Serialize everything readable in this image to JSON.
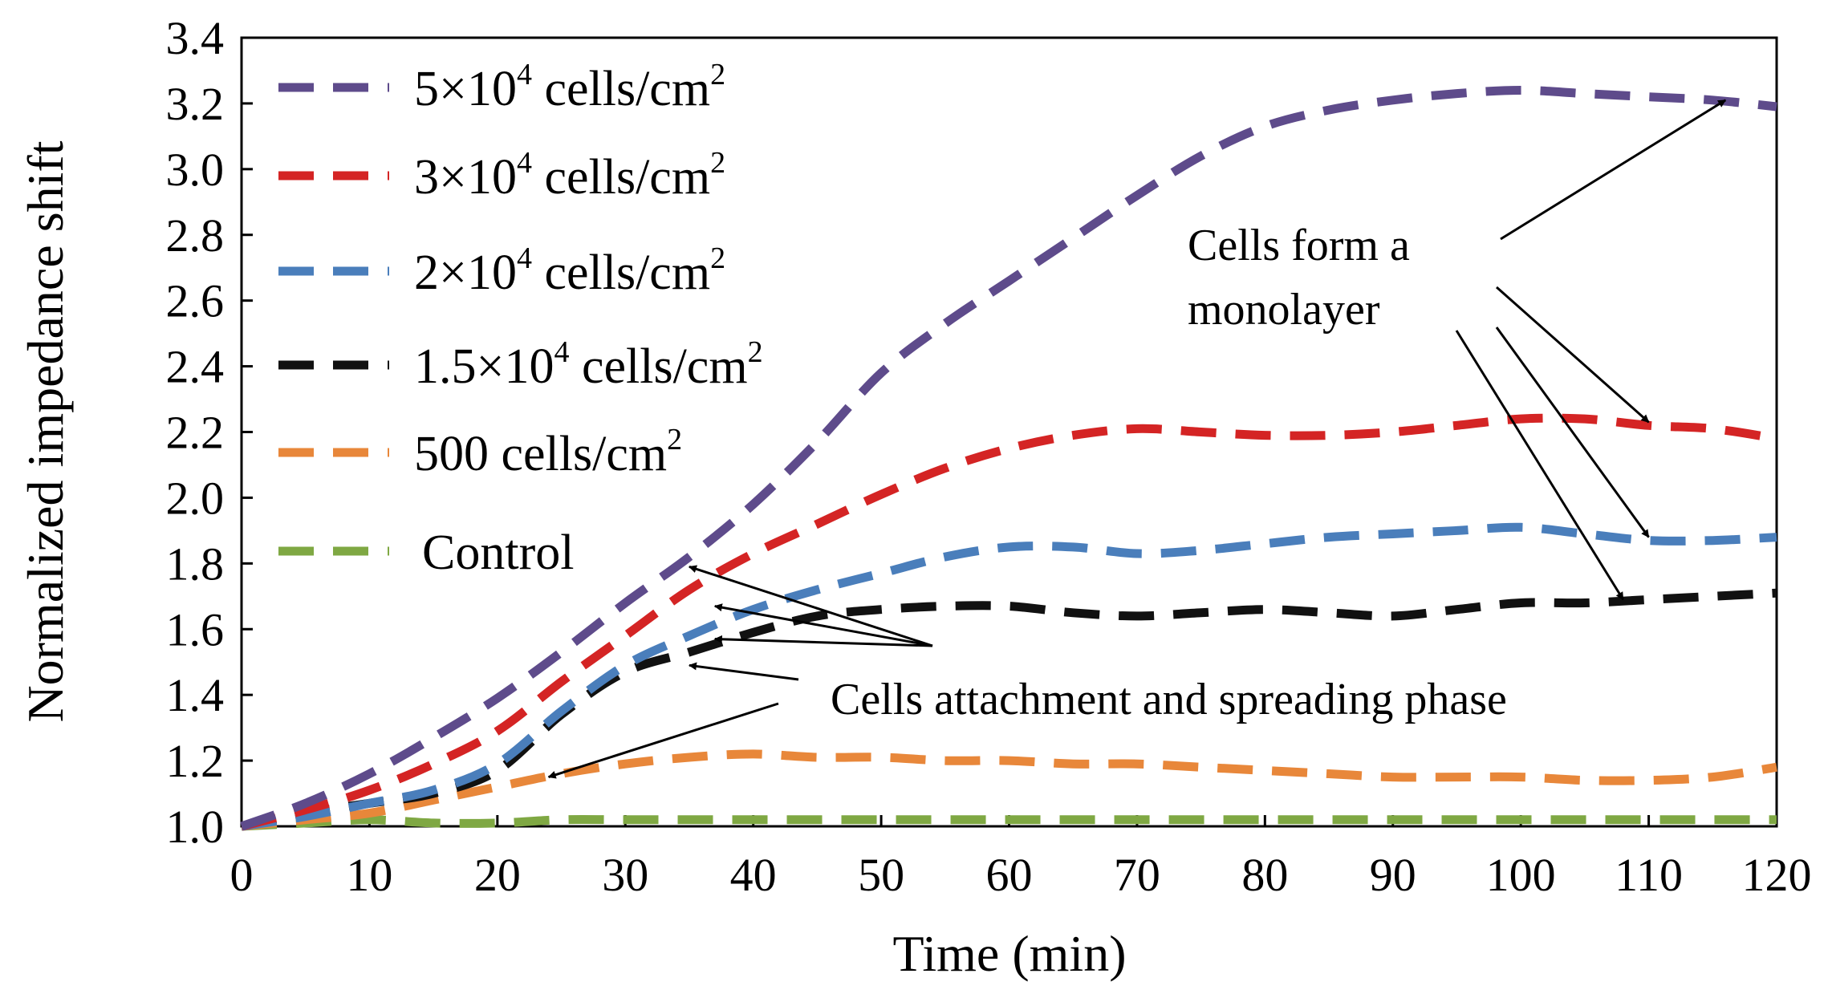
{
  "chart_data": {
    "type": "line",
    "title": "",
    "xlabel": "Time (min)",
    "ylabel": "Normalized impedance shift",
    "xlim": [
      0,
      120
    ],
    "ylim": [
      1.0,
      3.4
    ],
    "x_ticks": [
      "0",
      "10",
      "20",
      "30",
      "40",
      "50",
      "60",
      "70",
      "80",
      "90",
      "100",
      "110",
      "120"
    ],
    "y_ticks": [
      "1.0",
      "1.2",
      "1.4",
      "1.6",
      "1.8",
      "2.0",
      "2.2",
      "2.4",
      "2.6",
      "2.8",
      "3.0",
      "3.2",
      "3.4"
    ],
    "grid": false,
    "legend_position": "top-left",
    "series": [
      {
        "name": "5×10⁴ cells/cm²",
        "label_main": "5×10",
        "label_exp": "4",
        "label_unit": " cells/cm",
        "label_unit_exp": "2",
        "color": "#5e4b8b",
        "x": [
          0,
          5,
          10,
          15,
          20,
          25,
          30,
          35,
          40,
          45,
          50,
          55,
          60,
          65,
          70,
          75,
          80,
          85,
          90,
          95,
          100,
          105,
          110,
          115,
          120
        ],
        "y": [
          1.0,
          1.07,
          1.16,
          1.27,
          1.39,
          1.53,
          1.68,
          1.82,
          1.98,
          2.17,
          2.38,
          2.53,
          2.66,
          2.79,
          2.92,
          3.04,
          3.13,
          3.18,
          3.21,
          3.23,
          3.24,
          3.23,
          3.22,
          3.21,
          3.19
        ]
      },
      {
        "name": "3×10⁴ cells/cm²",
        "label_main": "3×10",
        "label_exp": "4",
        "label_unit": " cells/cm",
        "label_unit_exp": "2",
        "color": "#d42424",
        "x": [
          0,
          5,
          10,
          15,
          20,
          25,
          30,
          35,
          40,
          45,
          50,
          55,
          60,
          65,
          70,
          75,
          80,
          85,
          90,
          95,
          100,
          105,
          110,
          115,
          120
        ],
        "y": [
          1.0,
          1.05,
          1.11,
          1.19,
          1.29,
          1.44,
          1.58,
          1.72,
          1.83,
          1.92,
          2.01,
          2.09,
          2.15,
          2.19,
          2.21,
          2.2,
          2.19,
          2.19,
          2.2,
          2.22,
          2.24,
          2.24,
          2.22,
          2.21,
          2.18
        ]
      },
      {
        "name": "2×10⁴ cells/cm²",
        "label_main": "2×10",
        "label_exp": "4",
        "label_unit": " cells/cm",
        "label_unit_exp": "2",
        "color": "#4a7ebb",
        "x": [
          0,
          5,
          10,
          15,
          20,
          25,
          30,
          35,
          40,
          45,
          50,
          55,
          60,
          65,
          70,
          75,
          80,
          85,
          90,
          95,
          100,
          105,
          110,
          115,
          120
        ],
        "y": [
          1.0,
          1.03,
          1.07,
          1.11,
          1.19,
          1.35,
          1.49,
          1.58,
          1.66,
          1.72,
          1.77,
          1.82,
          1.85,
          1.85,
          1.83,
          1.84,
          1.86,
          1.88,
          1.89,
          1.9,
          1.91,
          1.89,
          1.87,
          1.87,
          1.88
        ]
      },
      {
        "name": "1.5×10⁴ cells/cm²",
        "label_main": "1.5×10",
        "label_exp": "4",
        "label_unit": " cells/cm",
        "label_unit_exp": "2",
        "color": "#111111",
        "x": [
          0,
          5,
          10,
          15,
          20,
          25,
          30,
          35,
          40,
          45,
          50,
          55,
          60,
          65,
          70,
          75,
          80,
          85,
          90,
          95,
          100,
          105,
          110,
          115,
          120
        ],
        "y": [
          1.0,
          1.04,
          1.07,
          1.1,
          1.17,
          1.34,
          1.47,
          1.53,
          1.59,
          1.64,
          1.66,
          1.67,
          1.67,
          1.65,
          1.64,
          1.65,
          1.66,
          1.65,
          1.64,
          1.66,
          1.68,
          1.68,
          1.69,
          1.7,
          1.71
        ]
      },
      {
        "name": "500 cells/cm²",
        "label_main": "500 cells/cm",
        "label_exp": "2",
        "label_unit": "",
        "label_unit_exp": "",
        "color": "#e8873a",
        "x": [
          0,
          5,
          10,
          15,
          20,
          25,
          30,
          35,
          40,
          45,
          50,
          55,
          60,
          65,
          70,
          75,
          80,
          85,
          90,
          95,
          100,
          105,
          110,
          115,
          120
        ],
        "y": [
          1.0,
          1.02,
          1.04,
          1.08,
          1.12,
          1.16,
          1.19,
          1.21,
          1.22,
          1.21,
          1.21,
          1.2,
          1.2,
          1.19,
          1.19,
          1.18,
          1.17,
          1.16,
          1.15,
          1.15,
          1.15,
          1.14,
          1.14,
          1.15,
          1.18
        ]
      },
      {
        "name": "Control",
        "label_main": "Control",
        "label_exp": "",
        "label_unit": "",
        "label_unit_exp": "",
        "color": "#7fa843",
        "x": [
          0,
          5,
          10,
          15,
          20,
          25,
          30,
          35,
          40,
          45,
          50,
          55,
          60,
          65,
          70,
          75,
          80,
          85,
          90,
          95,
          100,
          105,
          110,
          115,
          120
        ],
        "y": [
          1.0,
          1.01,
          1.02,
          1.01,
          1.01,
          1.02,
          1.02,
          1.02,
          1.02,
          1.02,
          1.02,
          1.02,
          1.02,
          1.02,
          1.02,
          1.02,
          1.02,
          1.02,
          1.02,
          1.02,
          1.02,
          1.02,
          1.02,
          1.02,
          1.02
        ]
      }
    ],
    "annotations": [
      {
        "id": "monolayer",
        "lines": [
          "Cells  form a",
          "monolayer"
        ],
        "arrow_targets": [
          {
            "x": 116,
            "y": 3.21
          },
          {
            "x": 110,
            "y": 2.23
          },
          {
            "x": 110,
            "y": 1.88
          },
          {
            "x": 108,
            "y": 1.69
          }
        ]
      },
      {
        "id": "attachment",
        "lines": [
          "Cells attachment and spreading phase"
        ],
        "arrow_targets": [
          {
            "x": 35,
            "y": 1.79
          },
          {
            "x": 37,
            "y": 1.67
          },
          {
            "x": 37,
            "y": 1.57
          },
          {
            "x": 35,
            "y": 1.49
          },
          {
            "x": 24,
            "y": 1.15
          }
        ]
      }
    ]
  }
}
